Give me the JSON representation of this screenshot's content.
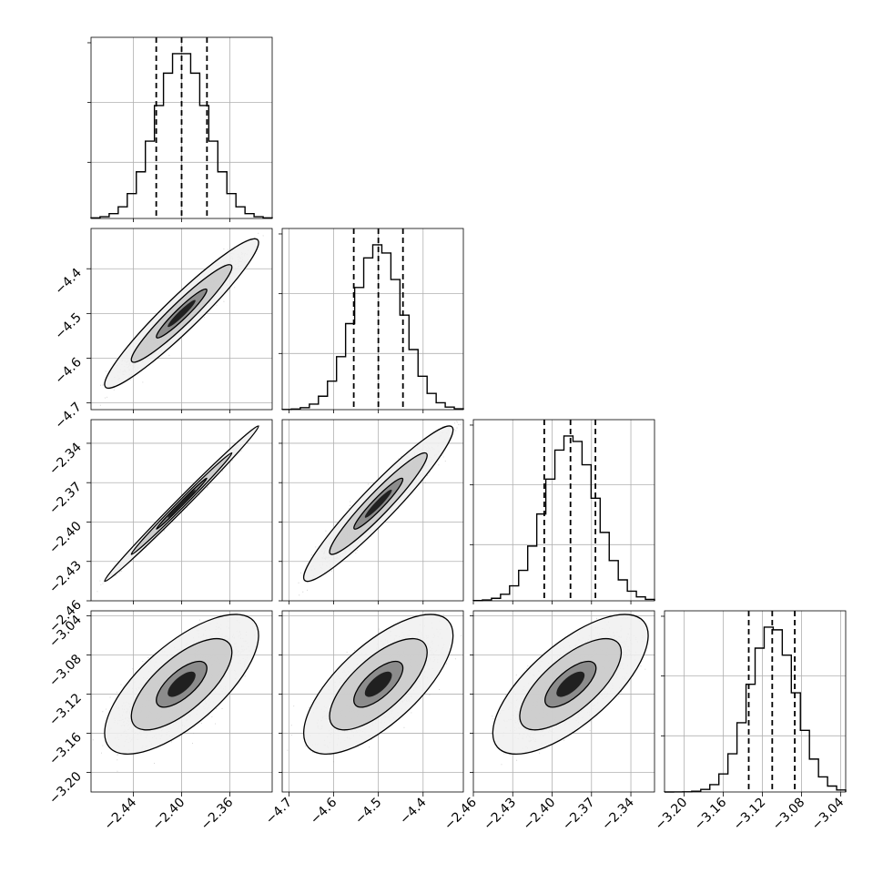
{
  "chart_data": {
    "type": "scatter",
    "title": "",
    "subtitle": "",
    "grid": true,
    "legend": "none",
    "params": [
      {
        "key": "p0",
        "range": [
          -2.475,
          -2.325
        ],
        "ticks": [
          -2.44,
          -2.4,
          -2.36
        ],
        "tick_labels": [
          "−2.44",
          "−2.40",
          "−2.36"
        ],
        "mean": -2.4,
        "sd": 0.021,
        "quantiles": [
          -2.421,
          -2.4,
          -2.379
        ]
      },
      {
        "key": "p1",
        "range": [
          -4.715,
          -4.31
        ],
        "ticks": [
          -4.7,
          -4.6,
          -4.5,
          -4.4
        ],
        "tick_labels": [
          "−4.7",
          "−4.6",
          "−4.5",
          "−4.4"
        ],
        "mean": -4.5,
        "sd": 0.055,
        "quantiles": [
          -4.555,
          -4.5,
          -4.445
        ]
      },
      {
        "key": "p2",
        "range": [
          -2.46,
          -2.322
        ],
        "ticks": [
          -2.46,
          -2.43,
          -2.4,
          -2.37,
          -2.34
        ],
        "tick_labels": [
          "−2.46",
          "−2.43",
          "−2.40",
          "−2.37",
          "−2.34"
        ],
        "mean": -2.386,
        "sd": 0.0195,
        "quantiles": [
          -2.406,
          -2.386,
          -2.367
        ]
      },
      {
        "key": "p3",
        "range": [
          -3.22,
          -3.035
        ],
        "ticks": [
          -3.2,
          -3.16,
          -3.12,
          -3.08,
          -3.04
        ],
        "tick_labels": [
          "−3.20",
          "−3.16",
          "−3.12",
          "−3.08",
          "−3.04"
        ],
        "mean": -3.11,
        "sd": 0.0235,
        "quantiles": [
          -3.134,
          -3.11,
          -3.087
        ]
      }
    ],
    "correlations": [
      {
        "x": "p0",
        "y": "p1",
        "r": 0.95
      },
      {
        "x": "p0",
        "y": "p2",
        "r": 0.995
      },
      {
        "x": "p1",
        "y": "p2",
        "r": 0.95
      },
      {
        "x": "p0",
        "y": "p3",
        "r": 0.7
      },
      {
        "x": "p1",
        "y": "p3",
        "r": 0.7
      },
      {
        "x": "p2",
        "y": "p3",
        "r": 0.7
      }
    ],
    "contour_levels": [
      0.39,
      0.86,
      0.99
    ],
    "histogram_bins": 20,
    "samples_per_panel": 3000,
    "colors": {
      "line": "#000000",
      "grid": "#b0b0b0",
      "sample_points": "#a0a0a0",
      "contour_fills": [
        "#ffffff",
        "#f0f0f0",
        "#c8c8c8",
        "#808080",
        "#202020"
      ]
    }
  }
}
